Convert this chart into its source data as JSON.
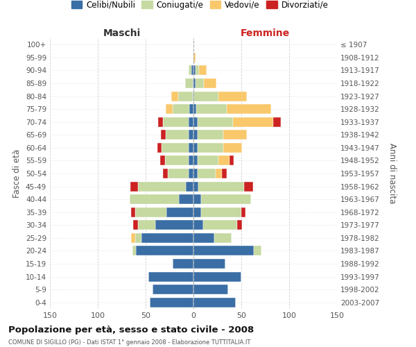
{
  "age_groups": [
    "100+",
    "95-99",
    "90-94",
    "85-89",
    "80-84",
    "75-79",
    "70-74",
    "65-69",
    "60-64",
    "55-59",
    "50-54",
    "45-49",
    "40-44",
    "35-39",
    "30-34",
    "25-29",
    "20-24",
    "15-19",
    "10-14",
    "5-9",
    "0-4"
  ],
  "birth_years": [
    "≤ 1907",
    "1908-1912",
    "1913-1917",
    "1918-1922",
    "1923-1927",
    "1928-1932",
    "1933-1937",
    "1938-1942",
    "1943-1947",
    "1948-1952",
    "1953-1957",
    "1958-1962",
    "1963-1967",
    "1968-1972",
    "1973-1977",
    "1978-1982",
    "1983-1987",
    "1988-1992",
    "1993-1997",
    "1998-2002",
    "2003-2007"
  ],
  "maschi": {
    "celibi": [
      0,
      0,
      2,
      1,
      1,
      4,
      5,
      5,
      5,
      5,
      5,
      8,
      15,
      28,
      40,
      54,
      60,
      22,
      47,
      43,
      46
    ],
    "coniugati": [
      0,
      0,
      3,
      8,
      15,
      18,
      27,
      24,
      28,
      25,
      22,
      50,
      52,
      33,
      18,
      7,
      4,
      0,
      0,
      0,
      0
    ],
    "vedovi": [
      0,
      0,
      0,
      0,
      7,
      7,
      0,
      0,
      0,
      0,
      0,
      0,
      0,
      0,
      0,
      4,
      0,
      0,
      0,
      0,
      0
    ],
    "divorziati": [
      0,
      0,
      0,
      0,
      0,
      0,
      5,
      5,
      5,
      5,
      5,
      8,
      0,
      4,
      5,
      0,
      0,
      0,
      0,
      0,
      0
    ]
  },
  "femmine": {
    "nubili": [
      0,
      0,
      2,
      2,
      0,
      3,
      4,
      4,
      4,
      4,
      4,
      5,
      8,
      8,
      10,
      22,
      63,
      33,
      50,
      36,
      44
    ],
    "coniugate": [
      0,
      0,
      4,
      9,
      26,
      32,
      37,
      27,
      27,
      22,
      19,
      48,
      52,
      42,
      36,
      18,
      8,
      0,
      0,
      0,
      0
    ],
    "vedove": [
      0,
      2,
      8,
      13,
      30,
      46,
      42,
      25,
      20,
      12,
      7,
      0,
      0,
      0,
      0,
      0,
      0,
      0,
      0,
      0,
      0
    ],
    "divorziate": [
      0,
      0,
      0,
      0,
      0,
      0,
      8,
      0,
      0,
      4,
      5,
      9,
      0,
      4,
      5,
      0,
      0,
      0,
      0,
      0,
      0
    ]
  },
  "colors": {
    "celibi": "#3a6ea5",
    "coniugati": "#c5d9a0",
    "vedovi": "#f9c86b",
    "divorziati": "#cc2222"
  },
  "legend_labels": [
    "Celibi/Nubili",
    "Coniugati/e",
    "Vedovi/e",
    "Divorziati/e"
  ],
  "title": "Popolazione per età, sesso e stato civile - 2008",
  "subtitle": "COMUNE DI SIGILLO (PG) - Dati ISTAT 1° gennaio 2008 - Elaborazione TUTTITALIA.IT",
  "xlabel_left": "Maschi",
  "xlabel_right": "Femmine",
  "ylabel_left": "Fasce di età",
  "ylabel_right": "Anni di nascita",
  "xlim": 150,
  "background_color": "#ffffff",
  "grid_color": "#cccccc"
}
